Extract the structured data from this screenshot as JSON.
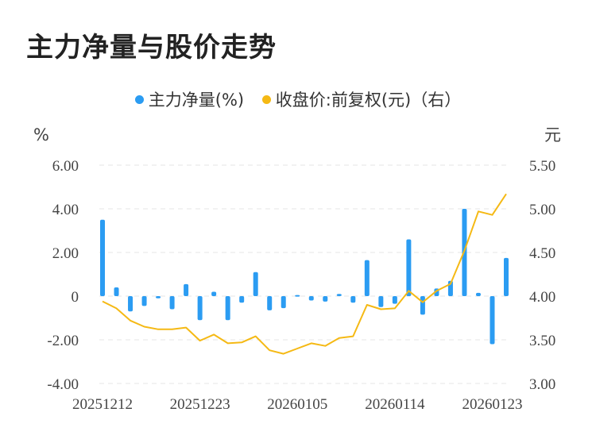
{
  "title": "主力净量与股价走势",
  "chart_data": {
    "type": "bar+line",
    "series": [
      {
        "name": "主力净量(%)",
        "type": "bar",
        "axis": "left",
        "color": "#2b9cf2",
        "values": [
          3.5,
          0.4,
          -0.7,
          -0.45,
          -0.1,
          -0.6,
          0.55,
          -1.1,
          0.2,
          -1.1,
          -0.3,
          1.1,
          -0.65,
          -0.55,
          0.05,
          -0.2,
          -0.25,
          0.1,
          -0.3,
          1.65,
          -0.5,
          -0.35,
          2.6,
          -0.85,
          0.35,
          0.7,
          4.0,
          0.15,
          -2.2,
          1.75
        ]
      },
      {
        "name": "收盘价:前复权(元)（右）",
        "type": "line",
        "axis": "right",
        "color": "#f5b914",
        "values": [
          3.94,
          3.86,
          3.72,
          3.65,
          3.62,
          3.62,
          3.64,
          3.49,
          3.56,
          3.46,
          3.47,
          3.54,
          3.38,
          3.34,
          3.4,
          3.46,
          3.43,
          3.52,
          3.54,
          3.9,
          3.85,
          3.86,
          4.06,
          3.93,
          4.06,
          4.14,
          4.52,
          4.97,
          4.93,
          5.17
        ]
      }
    ],
    "x_tick_labels": [
      "20251212",
      "20251223",
      "20260105",
      "20260114",
      "20260123"
    ],
    "y_left": {
      "unit": "%",
      "min": -4,
      "max": 6,
      "ticks": [
        "6.00",
        "4.00",
        "2.00",
        "0",
        "-2.00",
        "-4.00"
      ]
    },
    "y_right": {
      "unit": "元",
      "min": 3.0,
      "max": 5.5,
      "ticks": [
        "5.50",
        "5.00",
        "4.50",
        "4.00",
        "3.50",
        "3.00"
      ]
    },
    "grid": true,
    "legend_position": "top-center"
  }
}
